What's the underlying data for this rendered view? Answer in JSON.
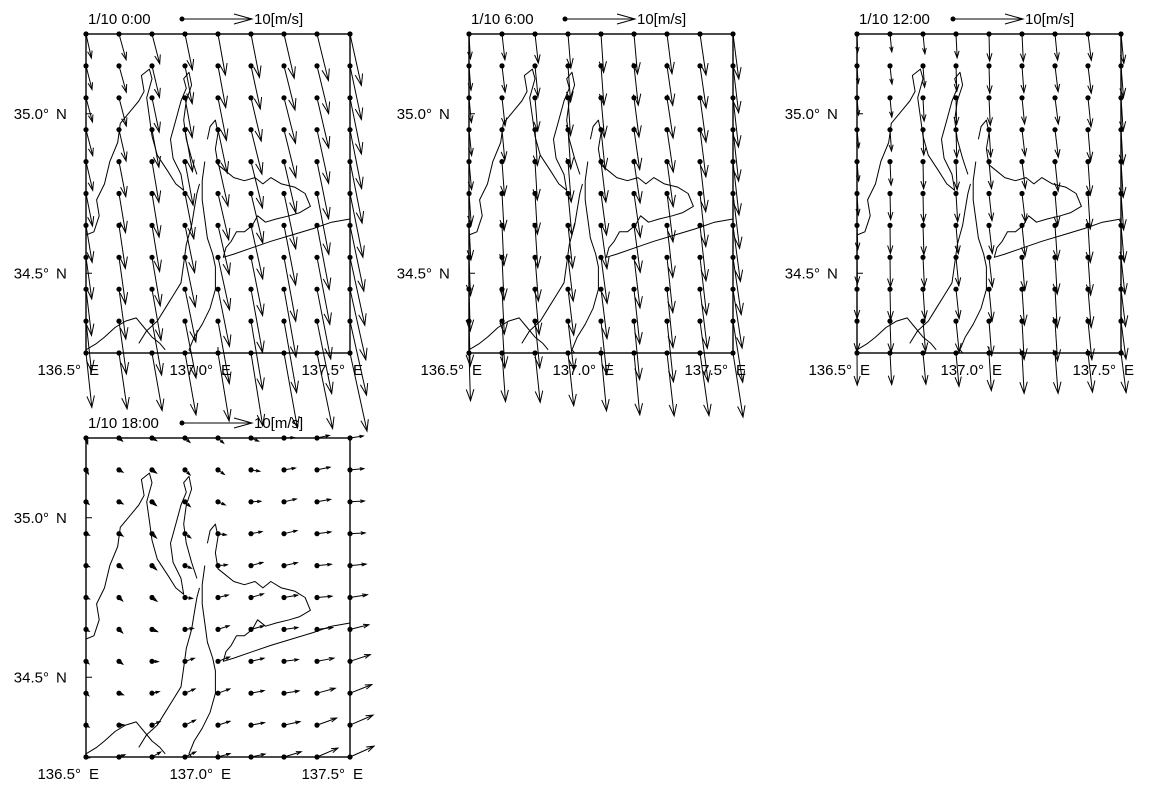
{
  "figure": {
    "vector_scale_label": "10[m/s]",
    "scale_speed": 10,
    "lon_ticks": [
      {
        "value": 136.5,
        "deg": "136.5°",
        "hemi": "E"
      },
      {
        "value": 137.0,
        "deg": "137.0°",
        "hemi": "E"
      },
      {
        "value": 137.5,
        "deg": "137.5°",
        "hemi": "E"
      }
    ],
    "lat_ticks": [
      {
        "value": 35.0,
        "deg": "35.0°",
        "hemi": "N"
      },
      {
        "value": 34.5,
        "deg": "34.5°",
        "hemi": "N"
      }
    ],
    "grid": {
      "lon_min": 136.5,
      "lon_max": 137.5,
      "lat_min": 34.25,
      "lat_max": 35.25,
      "cols": 9,
      "rows": 11
    },
    "panels": [
      {
        "time": "1/10 0:00",
        "wind": {
          "u0": 0.5,
          "v0": -2.0,
          "du": 1.8,
          "dv": -9.5,
          "east_weight": 0.95,
          "south_weight": 0.55
        }
      },
      {
        "time": "1/10 6:00",
        "wind": {
          "u0": 0.0,
          "v0": -2.5,
          "du": 1.3,
          "dv": -7.0,
          "east_weight": 0.9,
          "south_weight": 0.5
        }
      },
      {
        "time": "1/10 12:00",
        "wind": {
          "u0": 0.0,
          "v0": -2.0,
          "du": 0.6,
          "dv": -4.0,
          "east_weight": 0.9,
          "south_weight": 0.4
        }
      },
      {
        "time": "1/10 18:00",
        "wind": {
          "u0": -0.3,
          "v0": -1.2,
          "du": 3.6,
          "dv": 2.4,
          "east_weight": 1.2,
          "south_weight": 0.1
        }
      }
    ]
  }
}
